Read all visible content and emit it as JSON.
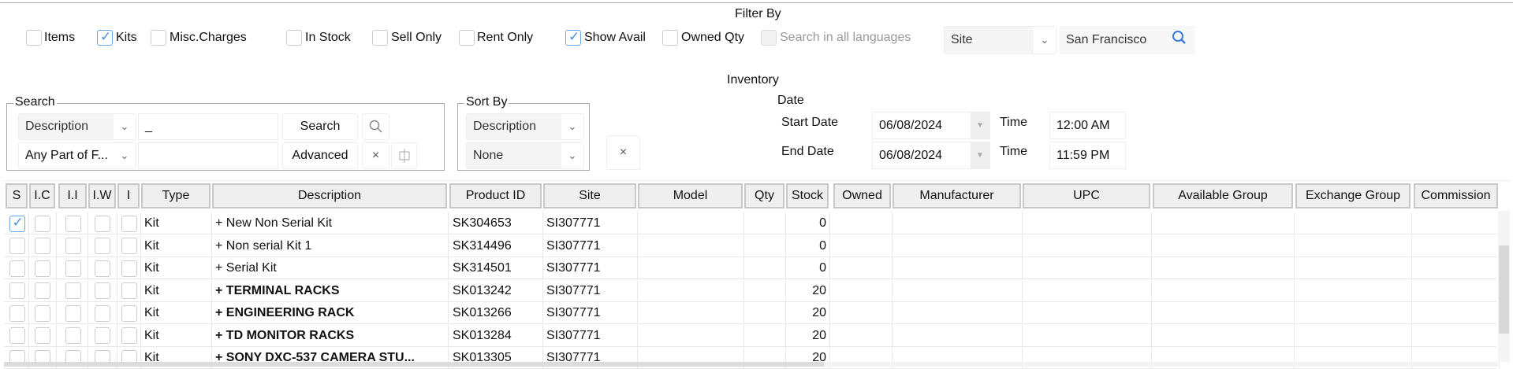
{
  "filter": {
    "title": "Filter By",
    "items": [
      {
        "label": "Items",
        "checked": false
      },
      {
        "label": "Kits",
        "checked": true
      },
      {
        "label": "Misc.Charges",
        "checked": false
      },
      {
        "label": "In Stock",
        "checked": false
      },
      {
        "label": "Sell Only",
        "checked": false
      },
      {
        "label": "Rent Only",
        "checked": false
      },
      {
        "label": "Show Avail",
        "checked": true
      },
      {
        "label": "Owned Qty",
        "checked": false
      },
      {
        "label": "Search in all languages",
        "checked": false,
        "disabled": true
      }
    ],
    "site_select": "Site",
    "site_value": "San Francisco",
    "search_icon": "search-icon"
  },
  "inventory_title": "Inventory",
  "search": {
    "legend": "Search",
    "field_select": "Description",
    "field_value": "_",
    "match_select": "Any Part of F...",
    "second_value": "",
    "search_button": "Search",
    "advanced_button": "Advanced",
    "clear_glyph": "×"
  },
  "sort": {
    "legend": "Sort By",
    "primary": "Description",
    "secondary": "None"
  },
  "clear_button": "×",
  "date": {
    "legend": "Date",
    "start_label": "Start Date",
    "start_value": "06/08/2024",
    "end_label": "End Date",
    "end_value": "06/08/2024",
    "time_label": "Time",
    "start_time": "12:00 AM",
    "end_time": "11:59 PM"
  },
  "table": {
    "columns": [
      "S",
      "I.C",
      "I.I",
      "I.W",
      "I",
      "Type",
      "Description",
      "Product ID",
      "Site",
      "Model",
      "Qty",
      "Stock",
      "Owned",
      "Manufacturer",
      "UPC",
      "Available Group",
      "Exchange Group",
      "Commission"
    ],
    "rows": [
      {
        "s": true,
        "type": "Kit",
        "description": "+ New Non Serial Kit",
        "bold": false,
        "product_id": "SK304653",
        "site": "SI307771",
        "stock": "0"
      },
      {
        "s": false,
        "type": "Kit",
        "description": "+ Non serial Kit 1",
        "bold": false,
        "product_id": "SK314496",
        "site": "SI307771",
        "stock": "0"
      },
      {
        "s": false,
        "type": "Kit",
        "description": "+ Serial Kit",
        "bold": false,
        "product_id": "SK314501",
        "site": "SI307771",
        "stock": "0"
      },
      {
        "s": false,
        "type": "Kit",
        "description": "+ TERMINAL RACKS",
        "bold": true,
        "product_id": "SK013242",
        "site": "SI307771",
        "stock": "20"
      },
      {
        "s": false,
        "type": "Kit",
        "description": "+ ENGINEERING RACK",
        "bold": true,
        "product_id": "SK013266",
        "site": "SI307771",
        "stock": "20"
      },
      {
        "s": false,
        "type": "Kit",
        "description": "+ TD MONITOR RACKS",
        "bold": true,
        "product_id": "SK013284",
        "site": "SI307771",
        "stock": "20"
      },
      {
        "s": false,
        "type": "Kit",
        "description": "+ SONY DXC-537 CAMERA STU...",
        "bold": true,
        "product_id": "SK013305",
        "site": "SI307771",
        "stock": "20"
      }
    ]
  },
  "colors": {
    "accent": "#4a8fe0",
    "header_bg": "#efefef"
  }
}
